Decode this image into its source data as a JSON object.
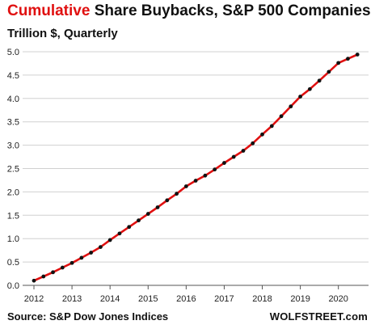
{
  "chart_data": {
    "type": "line",
    "title_accent": "Cumulative",
    "title_rest": " Share Buybacks, S&P 500 Companies",
    "subtitle": "Trillion $, Quarterly",
    "source": "Source: S&P Dow Jones Indices",
    "brand": "WOLFSTREET.com",
    "xlim": [
      2012,
      2020.75
    ],
    "ylim": [
      0,
      5.0
    ],
    "x_ticks": [
      "2012",
      "2013",
      "2014",
      "2015",
      "2016",
      "2017",
      "2018",
      "2019",
      "2020"
    ],
    "y_ticks": [
      "0.0",
      "0.5",
      "1.0",
      "1.5",
      "2.0",
      "2.5",
      "3.0",
      "3.5",
      "4.0",
      "4.5",
      "5.0"
    ],
    "grid": "horizontal",
    "line_color": "#e01010",
    "marker_color": "#111111",
    "series": [
      {
        "x": [
          2012.0,
          2012.25,
          2012.5,
          2012.75,
          2013.0,
          2013.25,
          2013.5,
          2013.75,
          2014.0,
          2014.25,
          2014.5,
          2014.75,
          2015.0,
          2015.25,
          2015.5,
          2015.75,
          2016.0,
          2016.25,
          2016.5,
          2016.75,
          2017.0,
          2017.25,
          2017.5,
          2017.75,
          2018.0,
          2018.25,
          2018.5,
          2018.75,
          2019.0,
          2019.25,
          2019.5,
          2019.75,
          2020.0,
          2020.25,
          2020.5
        ],
        "y": [
          0.1,
          0.19,
          0.28,
          0.38,
          0.48,
          0.59,
          0.7,
          0.82,
          0.97,
          1.11,
          1.25,
          1.39,
          1.53,
          1.67,
          1.82,
          1.96,
          2.12,
          2.24,
          2.35,
          2.48,
          2.62,
          2.75,
          2.88,
          3.04,
          3.23,
          3.41,
          3.62,
          3.83,
          4.04,
          4.2,
          4.38,
          4.57,
          4.76,
          4.85,
          4.94
        ]
      }
    ]
  }
}
